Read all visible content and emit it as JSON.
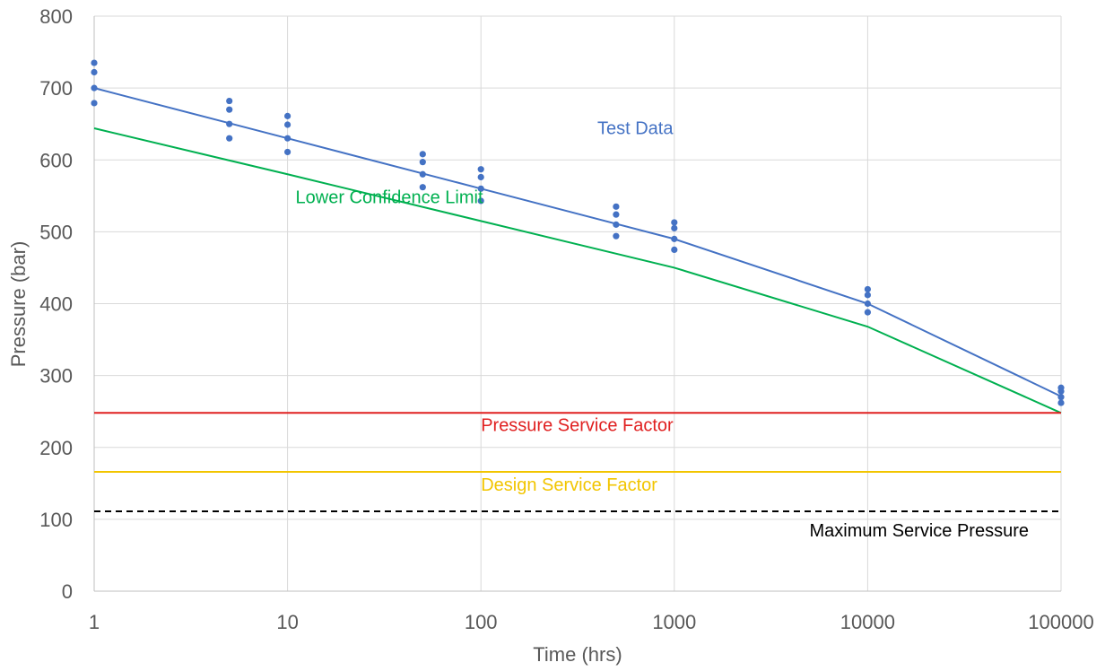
{
  "chart_data": {
    "type": "scatter",
    "title": "",
    "xlabel": "Time (hrs)",
    "ylabel": "Pressure (bar)",
    "xscale": "log",
    "xlim": [
      1,
      100000
    ],
    "ylim": [
      0,
      800
    ],
    "x_ticks": [
      1,
      10,
      100,
      1000,
      10000,
      100000
    ],
    "y_ticks": [
      0,
      100,
      200,
      300,
      400,
      500,
      600,
      700,
      800
    ],
    "grid": true,
    "colors": {
      "test": "#4472c4",
      "lcl": "#00b050",
      "psf": "#e02020",
      "dsf": "#f2c500",
      "msp": "#000000"
    },
    "scatter_points": [
      {
        "x": 1,
        "y": 735
      },
      {
        "x": 1,
        "y": 722
      },
      {
        "x": 1,
        "y": 700
      },
      {
        "x": 1,
        "y": 679
      },
      {
        "x": 5,
        "y": 682
      },
      {
        "x": 5,
        "y": 670
      },
      {
        "x": 5,
        "y": 650
      },
      {
        "x": 5,
        "y": 630
      },
      {
        "x": 10,
        "y": 661
      },
      {
        "x": 10,
        "y": 649
      },
      {
        "x": 10,
        "y": 630
      },
      {
        "x": 10,
        "y": 611
      },
      {
        "x": 50,
        "y": 608
      },
      {
        "x": 50,
        "y": 597
      },
      {
        "x": 50,
        "y": 580
      },
      {
        "x": 50,
        "y": 562
      },
      {
        "x": 100,
        "y": 587
      },
      {
        "x": 100,
        "y": 576
      },
      {
        "x": 100,
        "y": 560
      },
      {
        "x": 100,
        "y": 543
      },
      {
        "x": 500,
        "y": 535
      },
      {
        "x": 500,
        "y": 524
      },
      {
        "x": 500,
        "y": 510
      },
      {
        "x": 500,
        "y": 494
      },
      {
        "x": 1000,
        "y": 513
      },
      {
        "x": 1000,
        "y": 505
      },
      {
        "x": 1000,
        "y": 490
      },
      {
        "x": 1000,
        "y": 475
      },
      {
        "x": 10000,
        "y": 420
      },
      {
        "x": 10000,
        "y": 412
      },
      {
        "x": 10000,
        "y": 400
      },
      {
        "x": 10000,
        "y": 388
      },
      {
        "x": 100000,
        "y": 283
      },
      {
        "x": 100000,
        "y": 278
      },
      {
        "x": 100000,
        "y": 270
      },
      {
        "x": 100000,
        "y": 262
      }
    ],
    "series": [
      {
        "name": "Test Data",
        "color_key": "test",
        "points": [
          [
            1,
            700
          ],
          [
            10,
            630
          ],
          [
            100,
            560
          ],
          [
            1000,
            490
          ],
          [
            10000,
            400
          ],
          [
            100000,
            271
          ]
        ]
      },
      {
        "name": "Lower Confidence Limit",
        "color_key": "lcl",
        "points": [
          [
            1,
            644
          ],
          [
            10,
            580
          ],
          [
            100,
            515
          ],
          [
            1000,
            450
          ],
          [
            10000,
            368
          ],
          [
            100000,
            248
          ]
        ]
      },
      {
        "name": "Pressure Service Factor",
        "color_key": "psf",
        "points": [
          [
            1,
            248
          ],
          [
            100000,
            248
          ]
        ]
      },
      {
        "name": "Design Service Factor",
        "color_key": "dsf",
        "points": [
          [
            1,
            166
          ],
          [
            100000,
            166
          ]
        ]
      },
      {
        "name": "Maximum Service Pressure",
        "color_key": "msp",
        "dashed": true,
        "points": [
          [
            1,
            111
          ],
          [
            100000,
            111
          ]
        ]
      }
    ],
    "annotations": [
      {
        "text": "Test Data",
        "color_key": "test",
        "x": 400,
        "y": 636
      },
      {
        "text": "Lower Confidence Limit",
        "color_key": "lcl",
        "x": 11,
        "y": 540
      },
      {
        "text": "Pressure Service Factor",
        "color_key": "psf",
        "x": 100,
        "y": 223
      },
      {
        "text": "Design Service Factor",
        "color_key": "dsf",
        "x": 100,
        "y": 140
      },
      {
        "text": "Maximum Service Pressure",
        "color_key": "msp",
        "x": 5000,
        "y": 76
      }
    ]
  }
}
